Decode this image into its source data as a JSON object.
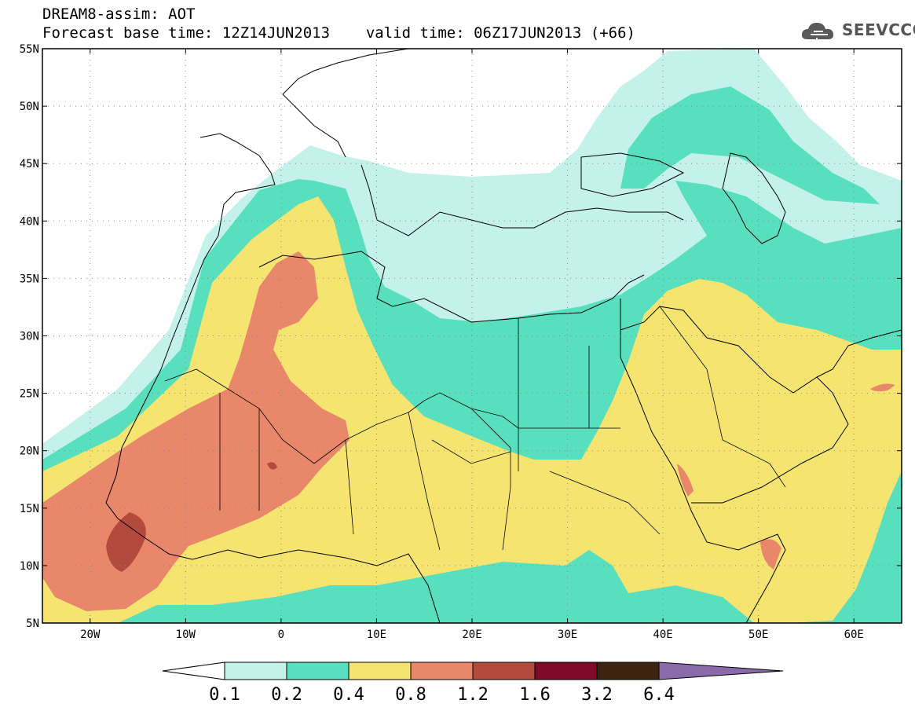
{
  "header": {
    "title": "DREAM8-assim: AOT",
    "base_time_label": "Forecast base time: 12Z14JUN2013",
    "valid_time_label": "valid time: 06Z17JUN2013 (+66)"
  },
  "logo": {
    "text": "SEEVCCC",
    "icon": "cloud-icon"
  },
  "map": {
    "projection": "lat-lon",
    "lon_range": [
      -25,
      65
    ],
    "lat_range": [
      5,
      55
    ],
    "grid": "dotted",
    "lat_ticks": [
      "55N",
      "50N",
      "45N",
      "40N",
      "35N",
      "30N",
      "25N",
      "20N",
      "15N",
      "10N",
      "5N"
    ],
    "lon_ticks": [
      "20W",
      "10W",
      "0",
      "10E",
      "20E",
      "30E",
      "40E",
      "50E",
      "60E"
    ],
    "variable": "Aerosol optical thickness (AOT)"
  },
  "colorbar": {
    "labels": [
      "0.1",
      "0.2",
      "0.4",
      "0.8",
      "1.2",
      "1.6",
      "3.2",
      "6.4"
    ],
    "colors": [
      "#ffffff",
      "#c4f1ea",
      "#58dfbd",
      "#f5e46f",
      "#e8876a",
      "#b34a3e",
      "#7d0a26",
      "#3d2410",
      "#8a6aa8"
    ]
  }
}
